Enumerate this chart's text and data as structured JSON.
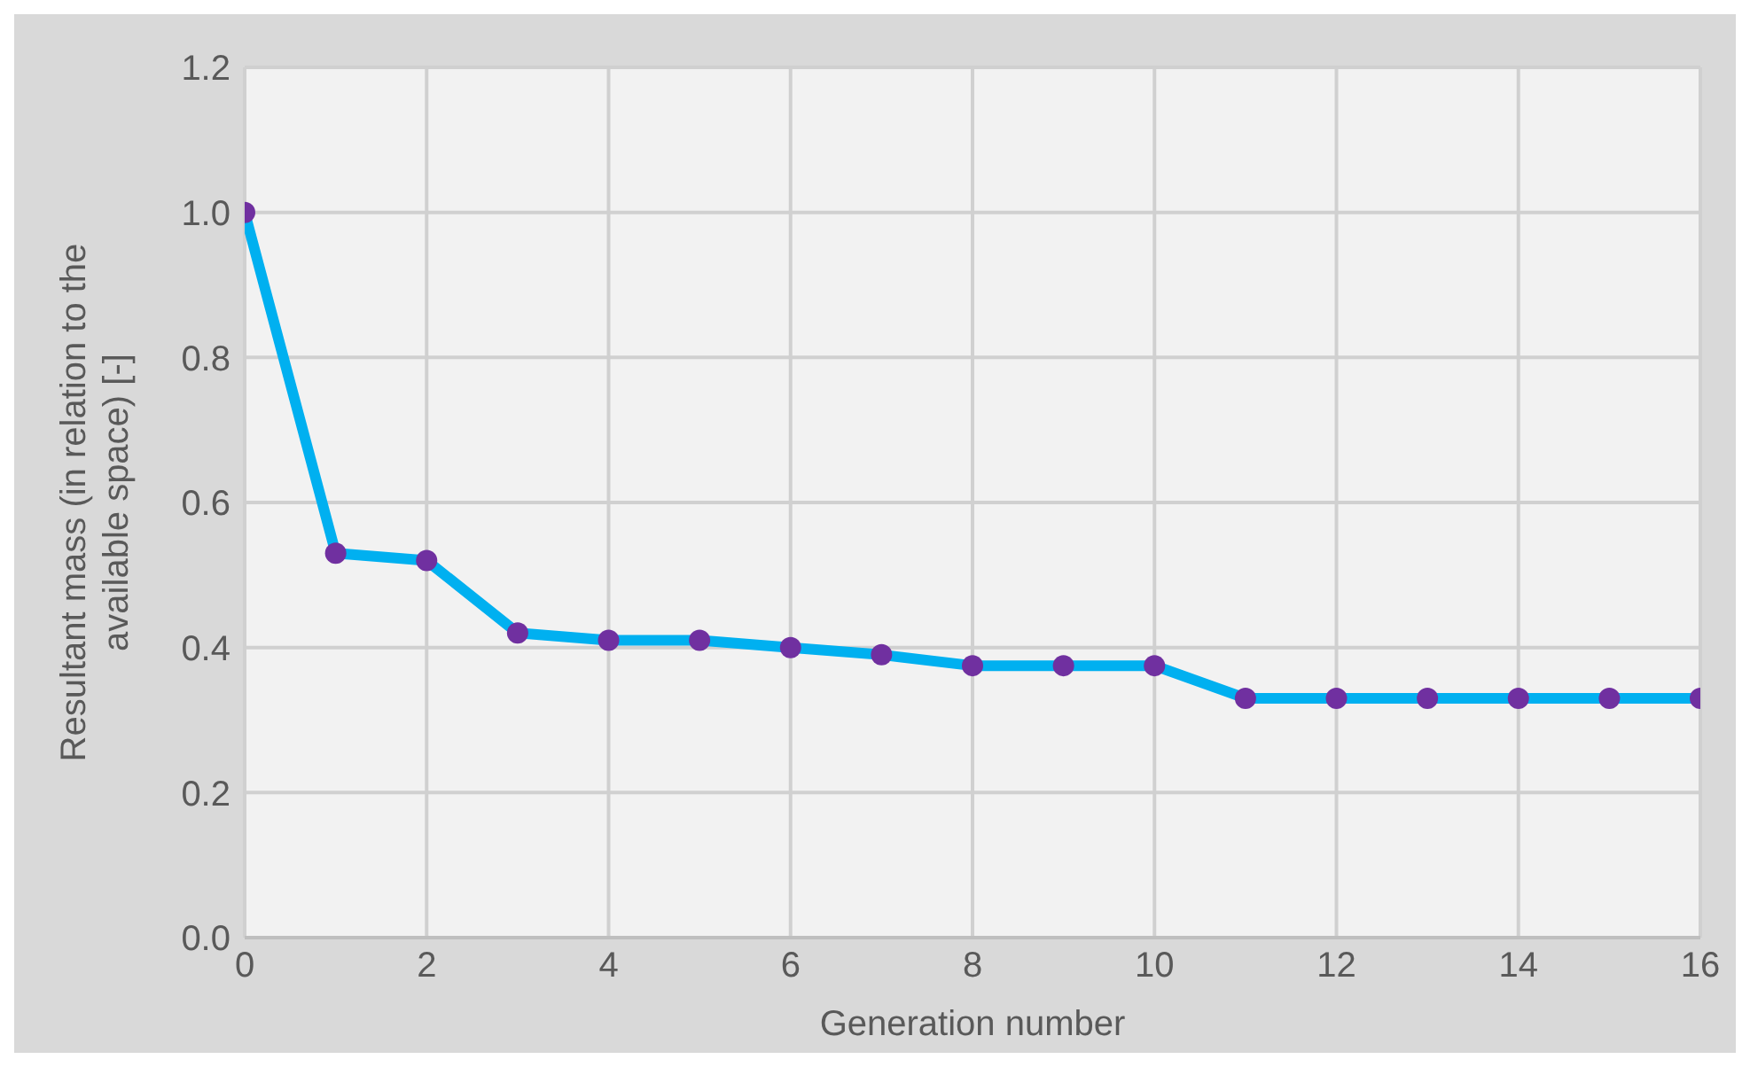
{
  "chart_data": {
    "type": "line",
    "xlabel": "Generation number",
    "ylabel": "Resultant mass (in relation to the available space) [-]",
    "x": [
      0,
      1,
      2,
      3,
      4,
      5,
      6,
      7,
      8,
      9,
      10,
      11,
      12,
      13,
      14,
      15,
      16
    ],
    "series": [
      {
        "color": "#00b0f0",
        "colors": [
          "#7030a0",
          "#7030a0",
          "#7030a0",
          "#7030a0",
          "#7030a0",
          "#7030a0",
          "#7030a0",
          "#7030a0",
          "#7030a0",
          "#7030a0",
          "#7030a0",
          "#7030a0",
          "#7030a0",
          "#7030a0",
          "#7030a0",
          "#7030a0",
          "#7030a0"
        ],
        "values": [
          1.0,
          0.53,
          0.52,
          0.42,
          0.41,
          0.41,
          0.4,
          0.39,
          0.375,
          0.375,
          0.375,
          0.33,
          0.33,
          0.33,
          0.33,
          0.33,
          0.33
        ]
      }
    ],
    "xlim": [
      0,
      16
    ],
    "xticks": [
      0,
      2,
      4,
      6,
      8,
      10,
      12,
      14,
      16
    ],
    "ylim": [
      0,
      1.2
    ],
    "yticks": [
      {
        "value": 0,
        "label": "0.0"
      },
      {
        "value": 0.2,
        "label": "0.2"
      },
      {
        "value": 0.4,
        "label": "0.4"
      },
      {
        "value": 0.6,
        "label": "0.6"
      },
      {
        "value": 0.8,
        "label": "0.8"
      },
      {
        "value": 1,
        "label": "1.0"
      },
      {
        "value": 1.2,
        "label": "1.2"
      }
    ],
    "grid": true,
    "marker": "circle",
    "line_style": "solid",
    "legend": false
  }
}
